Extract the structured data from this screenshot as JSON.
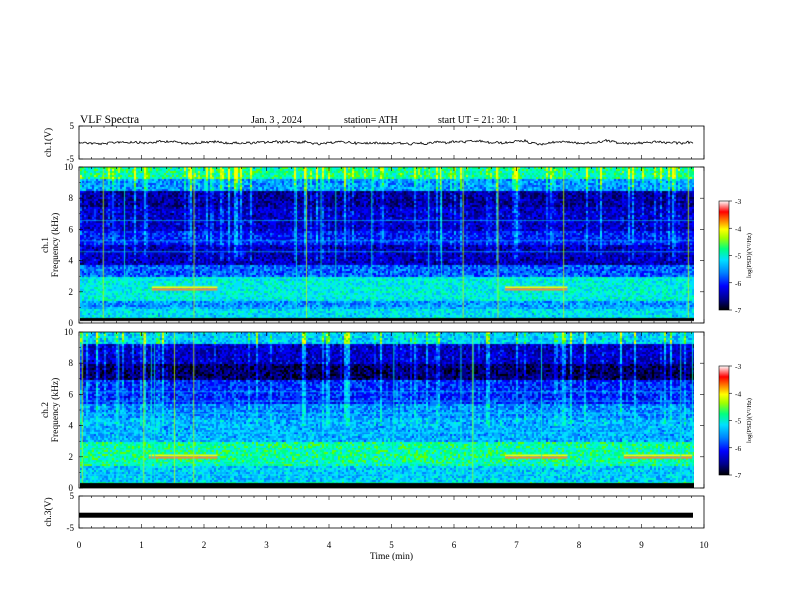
{
  "header": {
    "title": "VLF  Spectra",
    "date": "Jan.  3   , 2024",
    "station": "station= ATH",
    "start": "start  UT  =    21: 30: 1"
  },
  "chart_data": [
    {
      "type": "line",
      "name": "ch1-waveform-panel",
      "ylabel": "ch.1(V)",
      "y_ticks": [
        5,
        -5
      ],
      "ylim": [
        -5,
        5
      ],
      "approx_level": 0,
      "xlim": [
        0,
        10
      ]
    },
    {
      "type": "heatmap",
      "name": "ch1-spectrogram",
      "ylabel": "ch.1\nFrequency (kHz)",
      "ylabel_lines": [
        "ch.1",
        "Frequency (kHz)"
      ],
      "y_ticks": [
        0,
        2,
        4,
        6,
        8,
        10
      ],
      "ylim": [
        0,
        10
      ],
      "xlim": [
        0,
        10
      ],
      "colorbar": {
        "label": "log(PSD)(V²/Hz)",
        "ticks": [
          -3,
          -4,
          -5,
          -6,
          -7
        ],
        "range": [
          -7,
          -3
        ],
        "colors": [
          "#000000",
          "#00008b",
          "#0000ff",
          "#0080ff",
          "#00e0ff",
          "#00ff80",
          "#ffff00",
          "#ff8000",
          "#ff0000",
          "#ffffff"
        ]
      }
    },
    {
      "type": "heatmap",
      "name": "ch2-spectrogram",
      "ylabel": "ch.2\nFrequency (kHz)",
      "ylabel_lines": [
        "ch.2",
        "Frequency (kHz)"
      ],
      "y_ticks": [
        0,
        2,
        4,
        6,
        8,
        10
      ],
      "ylim": [
        0,
        10
      ],
      "xlim": [
        0,
        10
      ],
      "colorbar": {
        "label": "log(PSD)(V²/Hz)",
        "ticks": [
          -3,
          -4,
          -5,
          -6,
          -7
        ],
        "range": [
          -7,
          -3
        ],
        "colors": [
          "#000000",
          "#00008b",
          "#0000ff",
          "#0080ff",
          "#00e0ff",
          "#00ff80",
          "#ffff00",
          "#ff8000",
          "#ff0000",
          "#ffffff"
        ]
      }
    },
    {
      "type": "line",
      "name": "ch3-waveform-panel",
      "ylabel": "ch.3(V)",
      "y_ticks": [
        5,
        -5
      ],
      "ylim": [
        -5,
        5
      ],
      "approx_level": -1,
      "xlabel": "Time  (min)",
      "x_ticks": [
        0,
        1,
        2,
        3,
        4,
        5,
        6,
        7,
        8,
        9,
        10
      ],
      "xlim": [
        0,
        10
      ]
    }
  ]
}
